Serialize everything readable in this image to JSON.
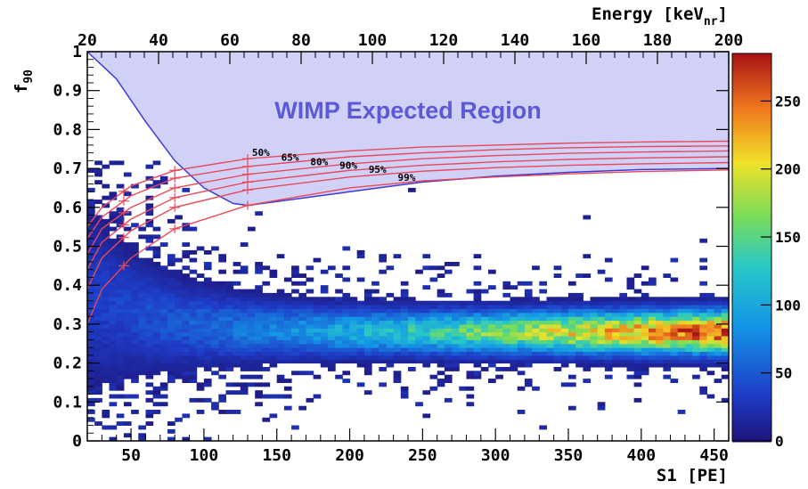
{
  "chart_data": {
    "type": "heatmap",
    "x_bottom": {
      "label": "S1 [PE]",
      "range": [
        20,
        460
      ],
      "ticks": [
        50,
        100,
        150,
        200,
        250,
        300,
        350,
        400,
        450
      ]
    },
    "x_top": {
      "label_main": "Energy [keV",
      "label_sub": "nr",
      "label_end": "]",
      "range": [
        20,
        200
      ],
      "ticks": [
        20,
        40,
        60,
        80,
        100,
        120,
        140,
        160,
        180,
        200
      ]
    },
    "y": {
      "label_main": "f",
      "label_sub": "90",
      "range": [
        0,
        1
      ],
      "ticks": [
        0,
        0.1,
        0.2,
        0.3,
        0.4,
        0.5,
        0.6,
        0.7,
        0.8,
        0.9,
        1
      ]
    },
    "colorbar": {
      "range": [
        0,
        285
      ],
      "ticks": [
        0,
        50,
        100,
        150,
        200,
        250
      ]
    },
    "region_label": "WIMP Expected Region",
    "band": {
      "center_f90": 0.28,
      "peak_count_at_s1_440": 280
    },
    "wimp_region_lower_boundary": [
      [
        20,
        1.0
      ],
      [
        40,
        0.93
      ],
      [
        60,
        0.82
      ],
      [
        80,
        0.72
      ],
      [
        100,
        0.65
      ],
      [
        120,
        0.61
      ],
      [
        130,
        0.605
      ],
      [
        200,
        0.64
      ],
      [
        250,
        0.665
      ],
      [
        300,
        0.68
      ],
      [
        350,
        0.69
      ],
      [
        400,
        0.697
      ],
      [
        460,
        0.7
      ]
    ],
    "acceptance_curves": [
      {
        "name": "50%",
        "points": [
          [
            20,
            0.55
          ],
          [
            30,
            0.6
          ],
          [
            50,
            0.655
          ],
          [
            80,
            0.695
          ],
          [
            130,
            0.725
          ],
          [
            200,
            0.745
          ],
          [
            250,
            0.755
          ],
          [
            300,
            0.76
          ],
          [
            350,
            0.765
          ],
          [
            400,
            0.768
          ],
          [
            460,
            0.77
          ]
        ]
      },
      {
        "name": "65%",
        "points": [
          [
            20,
            0.52
          ],
          [
            30,
            0.575
          ],
          [
            50,
            0.63
          ],
          [
            80,
            0.675
          ],
          [
            130,
            0.705
          ],
          [
            200,
            0.73
          ],
          [
            250,
            0.74
          ],
          [
            300,
            0.748
          ],
          [
            350,
            0.753
          ],
          [
            400,
            0.756
          ],
          [
            460,
            0.758
          ]
        ]
      },
      {
        "name": "80%",
        "points": [
          [
            20,
            0.48
          ],
          [
            30,
            0.545
          ],
          [
            50,
            0.6
          ],
          [
            80,
            0.65
          ],
          [
            130,
            0.685
          ],
          [
            200,
            0.712
          ],
          [
            250,
            0.725
          ],
          [
            300,
            0.733
          ],
          [
            350,
            0.739
          ],
          [
            400,
            0.742
          ],
          [
            460,
            0.745
          ]
        ]
      },
      {
        "name": "90%",
        "points": [
          [
            20,
            0.44
          ],
          [
            30,
            0.51
          ],
          [
            50,
            0.57
          ],
          [
            80,
            0.625
          ],
          [
            130,
            0.665
          ],
          [
            200,
            0.695
          ],
          [
            250,
            0.708
          ],
          [
            300,
            0.717
          ],
          [
            350,
            0.723
          ],
          [
            400,
            0.727
          ],
          [
            460,
            0.73
          ]
        ]
      },
      {
        "name": "95%",
        "points": [
          [
            20,
            0.39
          ],
          [
            30,
            0.47
          ],
          [
            50,
            0.54
          ],
          [
            80,
            0.6
          ],
          [
            130,
            0.645
          ],
          [
            200,
            0.678
          ],
          [
            250,
            0.693
          ],
          [
            300,
            0.702
          ],
          [
            350,
            0.708
          ],
          [
            400,
            0.712
          ],
          [
            460,
            0.715
          ]
        ]
      },
      {
        "name": "99%",
        "points": [
          [
            20,
            0.3
          ],
          [
            30,
            0.39
          ],
          [
            50,
            0.47
          ],
          [
            80,
            0.545
          ],
          [
            130,
            0.605
          ],
          [
            200,
            0.65
          ],
          [
            250,
            0.668
          ],
          [
            300,
            0.678
          ],
          [
            350,
            0.686
          ],
          [
            400,
            0.692
          ],
          [
            460,
            0.696
          ]
        ]
      }
    ],
    "colors": {
      "region_fill": "#cfcff7",
      "region_edge": "#3a3ad8",
      "curve": "#e8485a"
    }
  }
}
